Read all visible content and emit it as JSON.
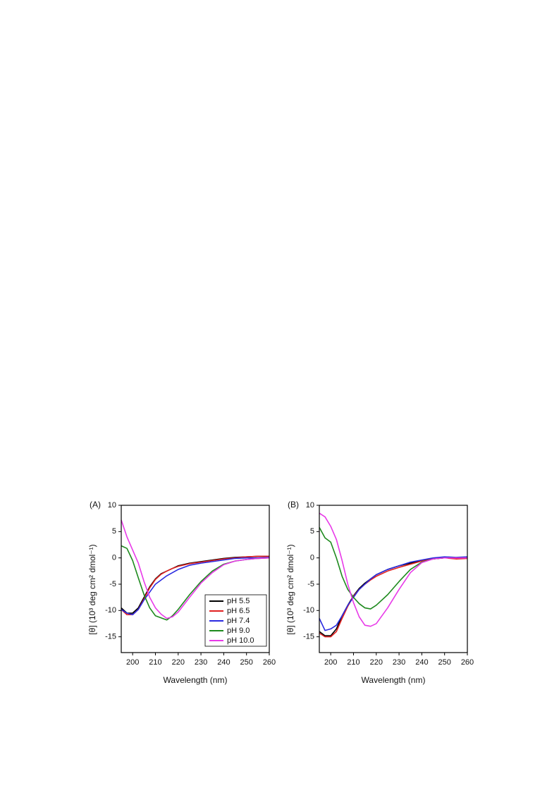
{
  "chart_data": [
    {
      "type": "line",
      "title": "(A)",
      "x_label": "Wavelength (nm)",
      "y_label": "[θ] (10³ deg cm² dmol⁻¹)",
      "x": [
        195,
        197.5,
        200,
        202.5,
        205,
        207.5,
        210,
        212.5,
        215,
        217.5,
        220,
        225,
        230,
        235,
        240,
        245,
        250,
        255,
        260
      ],
      "series": [
        {
          "name": "pH 5.5",
          "color": "#000000",
          "values": [
            -9.5,
            -10.5,
            -10.5,
            -9.5,
            -7.5,
            -5.5,
            -4,
            -3,
            -2.5,
            -2,
            -1.5,
            -1,
            -0.7,
            -0.4,
            -0.1,
            0.1,
            0.2,
            0.3,
            0.3
          ]
        },
        {
          "name": "pH 6.5",
          "color": "#e02020",
          "values": [
            -9.8,
            -10.8,
            -10.8,
            -9.8,
            -7.8,
            -5.7,
            -4.1,
            -3.1,
            -2.5,
            -2,
            -1.6,
            -1.1,
            -0.8,
            -0.5,
            -0.2,
            0,
            0.2,
            0.3,
            0.3
          ]
        },
        {
          "name": "pH 7.4",
          "color": "#2a2ae0",
          "values": [
            -9.8,
            -10.5,
            -10.8,
            -9.8,
            -8,
            -6.5,
            -5,
            -4.2,
            -3.4,
            -2.8,
            -2.2,
            -1.4,
            -1,
            -0.7,
            -0.4,
            -0.1,
            0,
            0,
            0.1
          ]
        },
        {
          "name": "pH 9.0",
          "color": "#1e8a1e",
          "values": [
            2.3,
            1.8,
            -0.5,
            -3.8,
            -7,
            -9.5,
            -11,
            -11.4,
            -11.8,
            -11,
            -9.8,
            -7,
            -4.5,
            -2.5,
            -1.2,
            -0.6,
            -0.3,
            -0.1,
            0
          ]
        },
        {
          "name": "pH 10.0",
          "color": "#e83ae8",
          "values": [
            7.2,
            4,
            1.5,
            -1,
            -4.5,
            -7.5,
            -9.5,
            -10.7,
            -11.5,
            -11.2,
            -10.3,
            -7.5,
            -4.8,
            -2.8,
            -1.3,
            -0.6,
            -0.3,
            -0.1,
            0
          ]
        }
      ],
      "xlim": [
        195,
        260
      ],
      "xticks": [
        200,
        210,
        220,
        230,
        240,
        250,
        260
      ],
      "ylim": [
        -18,
        10
      ],
      "yticks": [
        -15,
        -10,
        -5,
        0,
        5,
        10
      ],
      "legend": "lower right"
    },
    {
      "type": "line",
      "title": "(B)",
      "x_label": "Wavelength (nm)",
      "y_label": "[θ] (10³ deg cm² dmol⁻¹)",
      "x": [
        195,
        197.5,
        200,
        202.5,
        205,
        207.5,
        210,
        212.5,
        215,
        217.5,
        220,
        225,
        230,
        235,
        240,
        245,
        250,
        255,
        260
      ],
      "series": [
        {
          "color": "#000000",
          "values": [
            -14,
            -14.8,
            -14.8,
            -13.5,
            -11,
            -9,
            -7.2,
            -5.8,
            -4.8,
            -4,
            -3.2,
            -2.2,
            -1.5,
            -1,
            -0.5,
            -0.2,
            0,
            0,
            0
          ]
        },
        {
          "color": "#e02020",
          "values": [
            -14.3,
            -15,
            -15,
            -14,
            -11.5,
            -9.2,
            -7.3,
            -6,
            -5,
            -4.2,
            -3.5,
            -2.5,
            -1.8,
            -1.2,
            -0.6,
            -0.2,
            0,
            -0.2,
            -0.1
          ]
        },
        {
          "color": "#2a2ae0",
          "values": [
            -11.5,
            -13.8,
            -13.5,
            -12.8,
            -11,
            -9,
            -7.5,
            -6,
            -5,
            -4,
            -3.2,
            -2.2,
            -1.5,
            -0.8,
            -0.4,
            0,
            0.2,
            0.1,
            0.2
          ]
        },
        {
          "color": "#1e8a1e",
          "values": [
            5.8,
            3.8,
            3,
            0,
            -3.5,
            -6,
            -7.5,
            -8.7,
            -9.5,
            -9.7,
            -9,
            -7,
            -4.5,
            -2.2,
            -0.8,
            -0.2,
            0,
            0,
            0
          ]
        },
        {
          "color": "#e83ae8",
          "values": [
            8.5,
            7.8,
            6,
            3.5,
            -0.5,
            -5,
            -8.5,
            -11.2,
            -12.8,
            -13,
            -12.5,
            -9.5,
            -6,
            -2.8,
            -0.9,
            -0.2,
            0,
            0,
            0
          ]
        }
      ],
      "xlim": [
        195,
        260
      ],
      "xticks": [
        200,
        210,
        220,
        230,
        240,
        250,
        260
      ],
      "ylim": [
        -18,
        10
      ],
      "yticks": [
        -15,
        -10,
        -5,
        0,
        5,
        10
      ]
    }
  ]
}
